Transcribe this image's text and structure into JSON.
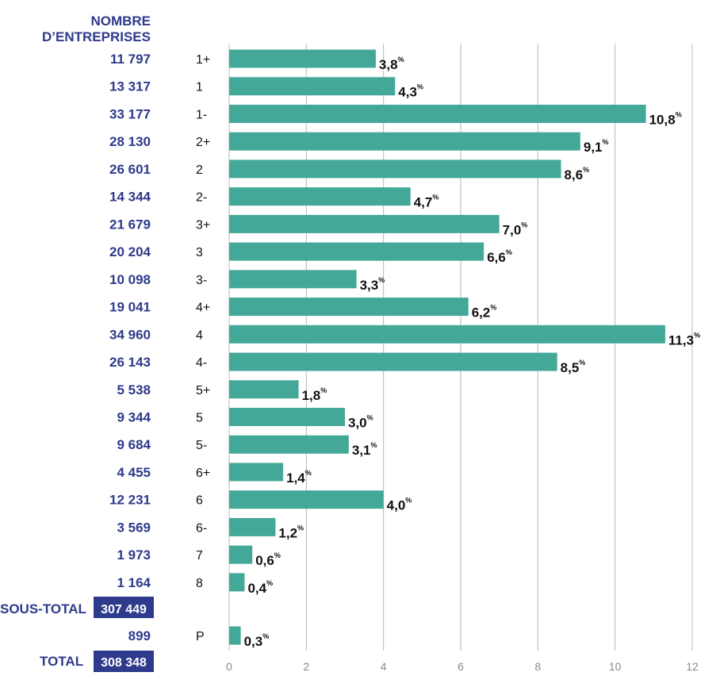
{
  "colors": {
    "bar": "#43a898",
    "navy": "#2e3a8c",
    "grid": "#b8b8b8",
    "text": "#111111",
    "axis_text": "#8a8a8a",
    "badge_text": "#ffffff"
  },
  "header": {
    "line1": "NOMBRE",
    "line2": "D’ENTREPRISES"
  },
  "summary": {
    "subtotal_label": "SOUS-TOTAL",
    "subtotal_value": "307 449",
    "total_label": "TOTAL",
    "total_value": "308 348"
  },
  "chart_data": {
    "type": "bar",
    "orientation": "horizontal",
    "xlim": [
      0,
      12
    ],
    "xticks": [
      0,
      2,
      4,
      6,
      8,
      10,
      12
    ],
    "grid": true,
    "value_unit": "%",
    "rows": [
      {
        "count": "11 797",
        "category": "1+",
        "value": 3.8,
        "value_label": "3,8"
      },
      {
        "count": "13 317",
        "category": "1",
        "value": 4.3,
        "value_label": "4,3"
      },
      {
        "count": "33 177",
        "category": "1-",
        "value": 10.8,
        "value_label": "10,8"
      },
      {
        "count": "28 130",
        "category": "2+",
        "value": 9.1,
        "value_label": "9,1"
      },
      {
        "count": "26 601",
        "category": "2",
        "value": 8.6,
        "value_label": "8,6"
      },
      {
        "count": "14 344",
        "category": "2-",
        "value": 4.7,
        "value_label": "4,7"
      },
      {
        "count": "21 679",
        "category": "3+",
        "value": 7.0,
        "value_label": "7,0"
      },
      {
        "count": "20 204",
        "category": "3",
        "value": 6.6,
        "value_label": "6,6"
      },
      {
        "count": "10 098",
        "category": "3-",
        "value": 3.3,
        "value_label": "3,3"
      },
      {
        "count": "19 041",
        "category": "4+",
        "value": 6.2,
        "value_label": "6,2"
      },
      {
        "count": "34 960",
        "category": "4",
        "value": 11.3,
        "value_label": "11,3"
      },
      {
        "count": "26 143",
        "category": "4-",
        "value": 8.5,
        "value_label": "8,5"
      },
      {
        "count": "5 538",
        "category": "5+",
        "value": 1.8,
        "value_label": "1,8"
      },
      {
        "count": "9 344",
        "category": "5",
        "value": 3.0,
        "value_label": "3,0"
      },
      {
        "count": "9 684",
        "category": "5-",
        "value": 3.1,
        "value_label": "3,1"
      },
      {
        "count": "4 455",
        "category": "6+",
        "value": 1.4,
        "value_label": "1,4"
      },
      {
        "count": "12 231",
        "category": "6",
        "value": 4.0,
        "value_label": "4,0"
      },
      {
        "count": "3 569",
        "category": "6-",
        "value": 1.2,
        "value_label": "1,2"
      },
      {
        "count": "1 973",
        "category": "7",
        "value": 0.6,
        "value_label": "0,6"
      },
      {
        "count": "1 164",
        "category": "8",
        "value": 0.4,
        "value_label": "0,4"
      },
      {
        "count": "899",
        "category": "P",
        "value": 0.3,
        "value_label": "0,3"
      }
    ]
  }
}
